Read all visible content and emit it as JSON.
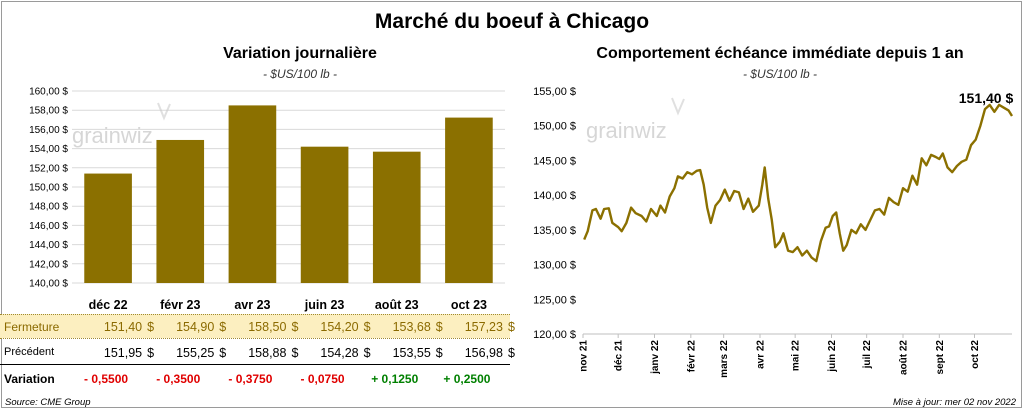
{
  "title": "Marché du boeuf à Chicago",
  "left_chart": {
    "title": "Variation  journalière",
    "subtitle": "- $US/100 lb -",
    "watermark": "grainwiz"
  },
  "right_chart": {
    "title": "Comportement  échéance  immédiate  depuis  1  an",
    "subtitle": "- $US/100 lb -",
    "watermark": "grainwiz",
    "last_label": "151,40 $"
  },
  "table": {
    "currency": "$",
    "rows": [
      {
        "label": "Fermeture",
        "values": [
          "151,40",
          "154,90",
          "158,50",
          "154,20",
          "153,68",
          "157,23"
        ],
        "dollar": true
      },
      {
        "label": "Précédent",
        "values": [
          "151,95",
          "155,25",
          "158,88",
          "154,28",
          "153,55",
          "156,98"
        ],
        "dollar": true
      },
      {
        "label": "Variation",
        "values": [
          "- 0,5500",
          "- 0,3500",
          "- 0,3750",
          "- 0,0750",
          "+ 0,1250",
          "+ 0,2500"
        ],
        "dollar": false
      }
    ]
  },
  "footer": {
    "source": "Source: CME Group",
    "updated": "Mise à jour: mer 02 nov 2022"
  },
  "colors": {
    "bar": "#8b7000",
    "line": "#8b7000",
    "fermeture_bg": "#fcefc0",
    "grid": "#d9d9d9",
    "negative": "#e00000",
    "positive": "#008000"
  },
  "chart_data": [
    {
      "type": "bar",
      "title": "Variation  journalière",
      "ylabel": "- $US/100 lb -",
      "categories": [
        "déc 22",
        "févr 23",
        "avr 23",
        "juin 23",
        "août 23",
        "oct 23"
      ],
      "values": [
        151.4,
        154.9,
        158.5,
        154.2,
        153.68,
        157.23
      ],
      "ylim": [
        140,
        160
      ],
      "yticks": [
        140,
        142,
        144,
        146,
        148,
        150,
        152,
        154,
        156,
        158,
        160
      ],
      "ytick_labels": [
        "140,00 $",
        "142,00 $",
        "144,00 $",
        "146,00 $",
        "148,00 $",
        "150,00 $",
        "152,00 $",
        "154,00 $",
        "156,00 $",
        "158,00 $",
        "160,00 $"
      ],
      "grid": true
    },
    {
      "type": "line",
      "title": "Comportement  échéance  immédiate  depuis  1  an",
      "ylabel": "- $US/100 lb -",
      "ylim": [
        120,
        155
      ],
      "yticks": [
        120,
        125,
        130,
        135,
        140,
        145,
        150,
        155
      ],
      "ytick_labels": [
        "120,00 $",
        "125,00 $",
        "130,00 $",
        "135,00 $",
        "140,00 $",
        "145,00 $",
        "150,00 $",
        "155,00 $"
      ],
      "x_start": "2021-11-02",
      "x_end": "2022-11-02",
      "xticks": [
        {
          "date": "2021-11-01",
          "label": "nov 21"
        },
        {
          "date": "2021-12-01",
          "label": "déc 21"
        },
        {
          "date": "2022-01-01",
          "label": "janv 22"
        },
        {
          "date": "2022-02-01",
          "label": "févr 22"
        },
        {
          "date": "2022-03-01",
          "label": "mars 22"
        },
        {
          "date": "2022-04-01",
          "label": "avr 22"
        },
        {
          "date": "2022-05-01",
          "label": "mai 22"
        },
        {
          "date": "2022-06-01",
          "label": "juin 22"
        },
        {
          "date": "2022-07-01",
          "label": "juil 22"
        },
        {
          "date": "2022-08-01",
          "label": "août 22"
        },
        {
          "date": "2022-09-01",
          "label": "sept 22"
        },
        {
          "date": "2022-10-01",
          "label": "oct 22"
        }
      ],
      "grid": false,
      "series": [
        {
          "values": [
            [
              "2021-11-02",
              133.6
            ],
            [
              "2021-11-05",
              134.8
            ],
            [
              "2021-11-09",
              137.8
            ],
            [
              "2021-11-12",
              138.0
            ],
            [
              "2021-11-16",
              136.6
            ],
            [
              "2021-11-19",
              138.0
            ],
            [
              "2021-11-23",
              138.1
            ],
            [
              "2021-11-26",
              136.0
            ],
            [
              "2021-12-01",
              135.4
            ],
            [
              "2021-12-04",
              134.8
            ],
            [
              "2021-12-08",
              136.0
            ],
            [
              "2021-12-12",
              138.2
            ],
            [
              "2021-12-16",
              137.4
            ],
            [
              "2021-12-21",
              137.0
            ],
            [
              "2021-12-25",
              136.2
            ],
            [
              "2021-12-29",
              138.0
            ],
            [
              "2022-01-03",
              137.0
            ],
            [
              "2022-01-06",
              138.5
            ],
            [
              "2022-01-10",
              137.5
            ],
            [
              "2022-01-14",
              139.8
            ],
            [
              "2022-01-18",
              141.0
            ],
            [
              "2022-01-21",
              142.7
            ],
            [
              "2022-01-25",
              142.4
            ],
            [
              "2022-01-29",
              143.3
            ],
            [
              "2022-02-02",
              143.0
            ],
            [
              "2022-02-06",
              143.5
            ],
            [
              "2022-02-09",
              143.6
            ],
            [
              "2022-02-12",
              141.5
            ],
            [
              "2022-02-15",
              138.2
            ],
            [
              "2022-02-18",
              136.0
            ],
            [
              "2022-02-22",
              138.5
            ],
            [
              "2022-02-26",
              139.3
            ],
            [
              "2022-03-02",
              140.8
            ],
            [
              "2022-03-06",
              139.2
            ],
            [
              "2022-03-10",
              140.6
            ],
            [
              "2022-03-14",
              140.4
            ],
            [
              "2022-03-18",
              138.0
            ],
            [
              "2022-03-22",
              139.5
            ],
            [
              "2022-03-26",
              137.6
            ],
            [
              "2022-03-31",
              138.5
            ],
            [
              "2022-04-03",
              141.5
            ],
            [
              "2022-04-05",
              144.0
            ],
            [
              "2022-04-08",
              139.5
            ],
            [
              "2022-04-11",
              136.5
            ],
            [
              "2022-04-14",
              132.5
            ],
            [
              "2022-04-18",
              133.3
            ],
            [
              "2022-04-21",
              134.5
            ],
            [
              "2022-04-25",
              132.0
            ],
            [
              "2022-04-29",
              131.8
            ],
            [
              "2022-05-03",
              132.5
            ],
            [
              "2022-05-07",
              131.3
            ],
            [
              "2022-05-11",
              132.0
            ],
            [
              "2022-05-15",
              131.0
            ],
            [
              "2022-05-19",
              130.5
            ],
            [
              "2022-05-23",
              133.4
            ],
            [
              "2022-05-27",
              135.3
            ],
            [
              "2022-05-30",
              135.5
            ],
            [
              "2022-06-02",
              137.0
            ],
            [
              "2022-06-05",
              137.5
            ],
            [
              "2022-06-08",
              134.5
            ],
            [
              "2022-06-11",
              132.0
            ],
            [
              "2022-06-14",
              132.8
            ],
            [
              "2022-06-18",
              135.0
            ],
            [
              "2022-06-22",
              134.5
            ],
            [
              "2022-06-26",
              135.8
            ],
            [
              "2022-06-30",
              135.0
            ],
            [
              "2022-07-04",
              136.4
            ],
            [
              "2022-07-08",
              137.8
            ],
            [
              "2022-07-12",
              138.0
            ],
            [
              "2022-07-16",
              137.2
            ],
            [
              "2022-07-20",
              139.6
            ],
            [
              "2022-07-24",
              139.0
            ],
            [
              "2022-07-28",
              138.6
            ],
            [
              "2022-08-01",
              141.0
            ],
            [
              "2022-08-05",
              140.5
            ],
            [
              "2022-08-09",
              142.8
            ],
            [
              "2022-08-13",
              141.5
            ],
            [
              "2022-08-17",
              145.3
            ],
            [
              "2022-08-21",
              144.3
            ],
            [
              "2022-08-25",
              145.8
            ],
            [
              "2022-08-29",
              145.5
            ],
            [
              "2022-09-01",
              145.2
            ],
            [
              "2022-09-04",
              146.0
            ],
            [
              "2022-09-08",
              144.0
            ],
            [
              "2022-09-12",
              143.3
            ],
            [
              "2022-09-16",
              144.2
            ],
            [
              "2022-09-20",
              144.8
            ],
            [
              "2022-09-24",
              145.1
            ],
            [
              "2022-09-28",
              147.2
            ],
            [
              "2022-10-02",
              148.0
            ],
            [
              "2022-10-06",
              150.0
            ],
            [
              "2022-10-10",
              152.4
            ],
            [
              "2022-10-14",
              153.0
            ],
            [
              "2022-10-18",
              152.0
            ],
            [
              "2022-10-22",
              153.0
            ],
            [
              "2022-10-26",
              152.6
            ],
            [
              "2022-10-30",
              152.2
            ],
            [
              "2022-11-02",
              151.4
            ]
          ]
        }
      ]
    }
  ]
}
